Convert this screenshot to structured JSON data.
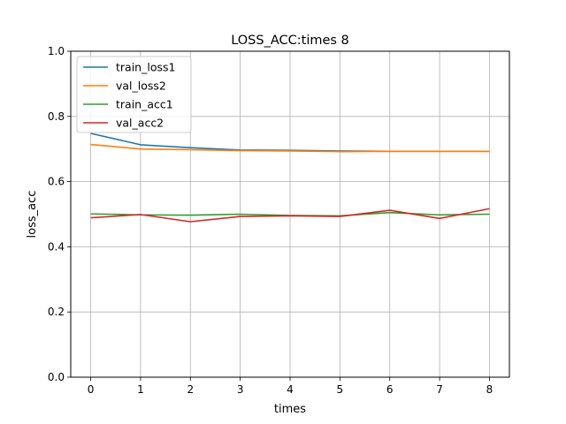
{
  "chart_data": {
    "type": "line",
    "title": "LOSS_ACC:times 8",
    "xlabel": "times",
    "ylabel": "loss_acc",
    "x": [
      0,
      1,
      2,
      3,
      4,
      5,
      6,
      7,
      8
    ],
    "xlim": [
      -0.4,
      8.4
    ],
    "ylim": [
      0.0,
      1.0
    ],
    "xticks": [
      0,
      1,
      2,
      3,
      4,
      5,
      6,
      7,
      8
    ],
    "yticks": [
      0.0,
      0.2,
      0.4,
      0.6,
      0.8,
      1.0
    ],
    "grid": true,
    "legend_position": "top-left",
    "series": [
      {
        "name": "train_loss1",
        "color": "#1f77b4",
        "values": [
          0.748,
          0.713,
          0.704,
          0.697,
          0.696,
          0.694,
          0.693,
          0.693,
          0.693
        ]
      },
      {
        "name": "val_loss2",
        "color": "#ff7f0e",
        "values": [
          0.714,
          0.7,
          0.698,
          0.695,
          0.694,
          0.692,
          0.693,
          0.693,
          0.693
        ]
      },
      {
        "name": "train_acc1",
        "color": "#2ca02c",
        "values": [
          0.501,
          0.498,
          0.497,
          0.5,
          0.496,
          0.495,
          0.505,
          0.498,
          0.5
        ]
      },
      {
        "name": "val_acc2",
        "color": "#d62728",
        "values": [
          0.489,
          0.499,
          0.477,
          0.493,
          0.495,
          0.493,
          0.512,
          0.487,
          0.517
        ]
      }
    ]
  }
}
